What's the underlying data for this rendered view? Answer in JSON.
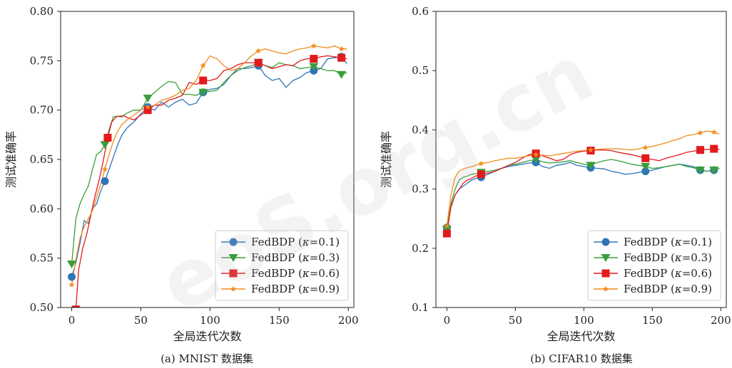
{
  "watermark": "eoS.org.cn",
  "chart_data": [
    {
      "type": "line",
      "caption": "(a) MNIST 数据集",
      "xlabel": "全局迭代次数",
      "ylabel": "测试准确率",
      "xlim": [
        -8,
        204
      ],
      "ylim": [
        0.5,
        0.8
      ],
      "xticks": [
        0,
        50,
        100,
        150,
        200
      ],
      "yticks": [
        "0.50",
        "0.55",
        "0.60",
        "0.65",
        "0.70",
        "0.75",
        "0.80"
      ],
      "legend_position": "lower-right",
      "series": [
        {
          "name": "FedBDP (κ=0.1)",
          "color": "#2e75b6",
          "marker": "circle",
          "x": [
            0,
            3,
            6,
            9,
            12,
            15,
            18,
            21,
            24,
            27,
            30,
            33,
            36,
            40,
            45,
            50,
            55,
            60,
            65,
            70,
            75,
            80,
            85,
            90,
            95,
            100,
            105,
            110,
            115,
            120,
            125,
            130,
            135,
            140,
            145,
            150,
            155,
            160,
            165,
            170,
            175,
            180,
            185,
            190,
            195,
            199
          ],
          "y": [
            0.531,
            0.545,
            0.565,
            0.588,
            0.585,
            0.6,
            0.605,
            0.618,
            0.628,
            0.64,
            0.652,
            0.664,
            0.674,
            0.682,
            0.688,
            0.696,
            0.703,
            0.7,
            0.708,
            0.703,
            0.708,
            0.711,
            0.705,
            0.707,
            0.718,
            0.721,
            0.722,
            0.726,
            0.735,
            0.742,
            0.742,
            0.743,
            0.745,
            0.735,
            0.73,
            0.732,
            0.723,
            0.73,
            0.733,
            0.738,
            0.74,
            0.742,
            0.752,
            0.753,
            0.754,
            0.747
          ]
        },
        {
          "name": "FedBDP (κ=0.3)",
          "color": "#3a9e3a",
          "marker": "triangle-down",
          "x": [
            0,
            3,
            6,
            9,
            12,
            15,
            18,
            21,
            24,
            27,
            30,
            33,
            36,
            40,
            45,
            50,
            55,
            60,
            65,
            70,
            75,
            80,
            85,
            90,
            95,
            100,
            105,
            110,
            115,
            120,
            125,
            130,
            135,
            140,
            145,
            150,
            155,
            160,
            165,
            170,
            175,
            180,
            185,
            190,
            195,
            199
          ],
          "y": [
            0.544,
            0.59,
            0.605,
            0.615,
            0.623,
            0.64,
            0.655,
            0.658,
            0.665,
            0.68,
            0.693,
            0.694,
            0.693,
            0.697,
            0.7,
            0.7,
            0.712,
            0.718,
            0.724,
            0.729,
            0.728,
            0.716,
            0.716,
            0.715,
            0.718,
            0.719,
            0.72,
            0.728,
            0.735,
            0.74,
            0.743,
            0.745,
            0.748,
            0.745,
            0.743,
            0.748,
            0.746,
            0.745,
            0.742,
            0.743,
            0.744,
            0.742,
            0.74,
            0.74,
            0.736,
            0.738
          ]
        },
        {
          "name": "FedBDP (κ=0.6)",
          "color": "#e31a1c",
          "marker": "square",
          "x": [
            3,
            5,
            8,
            11,
            14,
            17,
            20,
            23,
            26,
            29,
            32,
            35,
            38,
            41,
            45,
            50,
            55,
            60,
            65,
            70,
            75,
            80,
            85,
            90,
            95,
            100,
            105,
            110,
            115,
            120,
            125,
            130,
            135,
            140,
            145,
            150,
            155,
            160,
            165,
            170,
            175,
            180,
            185,
            190,
            195,
            199
          ],
          "y": [
            0.498,
            0.538,
            0.56,
            0.575,
            0.595,
            0.614,
            0.63,
            0.65,
            0.672,
            0.688,
            0.693,
            0.694,
            0.694,
            0.692,
            0.69,
            0.695,
            0.7,
            0.705,
            0.705,
            0.71,
            0.712,
            0.715,
            0.728,
            0.726,
            0.73,
            0.73,
            0.732,
            0.74,
            0.742,
            0.746,
            0.748,
            0.748,
            0.748,
            0.745,
            0.742,
            0.744,
            0.746,
            0.745,
            0.75,
            0.752,
            0.752,
            0.754,
            0.755,
            0.754,
            0.753,
            0.752
          ]
        },
        {
          "name": "FedBDP (κ=0.9)",
          "color": "#f08c1e",
          "marker": "star",
          "x": [
            0,
            3,
            6,
            9,
            12,
            15,
            18,
            21,
            24,
            27,
            30,
            33,
            36,
            40,
            45,
            50,
            55,
            60,
            65,
            70,
            75,
            80,
            85,
            90,
            95,
            100,
            105,
            110,
            115,
            120,
            125,
            130,
            135,
            140,
            145,
            150,
            155,
            160,
            165,
            170,
            175,
            180,
            185,
            190,
            195,
            199
          ],
          "y": [
            0.523,
            0.548,
            0.57,
            0.582,
            0.59,
            0.598,
            0.612,
            0.625,
            0.64,
            0.655,
            0.668,
            0.678,
            0.685,
            0.69,
            0.695,
            0.7,
            0.703,
            0.705,
            0.71,
            0.712,
            0.715,
            0.72,
            0.722,
            0.73,
            0.745,
            0.755,
            0.752,
            0.745,
            0.74,
            0.742,
            0.748,
            0.755,
            0.76,
            0.762,
            0.76,
            0.758,
            0.757,
            0.76,
            0.762,
            0.763,
            0.765,
            0.764,
            0.763,
            0.765,
            0.762,
            0.762
          ]
        }
      ]
    },
    {
      "type": "line",
      "caption": "(b) CIFAR10 数据集",
      "xlabel": "全局迭代次数",
      "ylabel": "测试准确率",
      "xlim": [
        -8,
        204
      ],
      "ylim": [
        0.1,
        0.6
      ],
      "xticks": [
        0,
        50,
        100,
        150,
        200
      ],
      "yticks": [
        "0.1",
        "0.2",
        "0.3",
        "0.4",
        "0.5",
        "0.6"
      ],
      "legend_position": "lower-right",
      "series": [
        {
          "name": "FedBDP (κ=0.1)",
          "color": "#2e75b6",
          "marker": "circle",
          "x": [
            0,
            3,
            6,
            9,
            12,
            15,
            18,
            21,
            25,
            30,
            35,
            40,
            45,
            50,
            55,
            60,
            65,
            70,
            75,
            80,
            85,
            90,
            95,
            100,
            105,
            110,
            115,
            120,
            125,
            130,
            135,
            140,
            145,
            150,
            155,
            160,
            165,
            170,
            175,
            180,
            185,
            190,
            195,
            199
          ],
          "y": [
            0.235,
            0.27,
            0.29,
            0.3,
            0.305,
            0.31,
            0.315,
            0.318,
            0.32,
            0.325,
            0.33,
            0.335,
            0.338,
            0.34,
            0.342,
            0.344,
            0.345,
            0.338,
            0.335,
            0.34,
            0.342,
            0.345,
            0.34,
            0.338,
            0.336,
            0.335,
            0.334,
            0.33,
            0.328,
            0.325,
            0.326,
            0.328,
            0.33,
            0.332,
            0.335,
            0.338,
            0.34,
            0.342,
            0.34,
            0.338,
            0.332,
            0.33,
            0.332,
            0.335
          ]
        },
        {
          "name": "FedBDP (κ=0.3)",
          "color": "#3a9e3a",
          "marker": "triangle-down",
          "x": [
            0,
            3,
            6,
            9,
            12,
            15,
            18,
            21,
            25,
            30,
            35,
            40,
            45,
            50,
            55,
            60,
            65,
            70,
            75,
            80,
            85,
            90,
            95,
            100,
            105,
            110,
            115,
            120,
            125,
            130,
            135,
            140,
            145,
            150,
            155,
            160,
            165,
            170,
            175,
            180,
            185,
            190,
            195,
            199
          ],
          "y": [
            0.232,
            0.275,
            0.3,
            0.315,
            0.32,
            0.322,
            0.325,
            0.326,
            0.328,
            0.33,
            0.332,
            0.335,
            0.34,
            0.342,
            0.345,
            0.348,
            0.35,
            0.346,
            0.344,
            0.345,
            0.346,
            0.348,
            0.345,
            0.342,
            0.34,
            0.345,
            0.348,
            0.35,
            0.348,
            0.345,
            0.342,
            0.34,
            0.338,
            0.335,
            0.336,
            0.338,
            0.34,
            0.342,
            0.338,
            0.336,
            0.332,
            0.33,
            0.332,
            0.335
          ]
        },
        {
          "name": "FedBDP (κ=0.6)",
          "color": "#e31a1c",
          "marker": "square",
          "x": [
            0,
            3,
            6,
            9,
            12,
            15,
            18,
            21,
            25,
            30,
            35,
            40,
            45,
            50,
            55,
            60,
            65,
            70,
            75,
            80,
            85,
            90,
            95,
            100,
            105,
            110,
            115,
            120,
            125,
            130,
            135,
            140,
            145,
            150,
            155,
            160,
            165,
            170,
            175,
            180,
            185,
            190,
            195,
            199
          ],
          "y": [
            0.225,
            0.27,
            0.29,
            0.3,
            0.31,
            0.315,
            0.318,
            0.322,
            0.325,
            0.327,
            0.33,
            0.335,
            0.34,
            0.345,
            0.352,
            0.358,
            0.36,
            0.356,
            0.352,
            0.348,
            0.35,
            0.358,
            0.362,
            0.364,
            0.365,
            0.366,
            0.366,
            0.365,
            0.362,
            0.36,
            0.358,
            0.355,
            0.352,
            0.35,
            0.348,
            0.352,
            0.355,
            0.358,
            0.362,
            0.364,
            0.366,
            0.367,
            0.368,
            0.367
          ]
        },
        {
          "name": "FedBDP (κ=0.9)",
          "color": "#f08c1e",
          "marker": "star",
          "x": [
            0,
            3,
            6,
            9,
            12,
            15,
            18,
            21,
            25,
            30,
            35,
            40,
            45,
            50,
            55,
            60,
            65,
            70,
            75,
            80,
            85,
            90,
            95,
            100,
            105,
            110,
            115,
            120,
            125,
            130,
            135,
            140,
            145,
            150,
            155,
            160,
            165,
            170,
            175,
            180,
            185,
            190,
            195,
            199
          ],
          "y": [
            0.238,
            0.29,
            0.32,
            0.33,
            0.334,
            0.336,
            0.338,
            0.34,
            0.343,
            0.345,
            0.348,
            0.35,
            0.352,
            0.352,
            0.354,
            0.356,
            0.358,
            0.357,
            0.356,
            0.358,
            0.36,
            0.362,
            0.364,
            0.365,
            0.366,
            0.367,
            0.368,
            0.368,
            0.368,
            0.367,
            0.366,
            0.368,
            0.37,
            0.372,
            0.375,
            0.378,
            0.382,
            0.385,
            0.39,
            0.392,
            0.395,
            0.398,
            0.396,
            0.393
          ]
        }
      ]
    }
  ]
}
